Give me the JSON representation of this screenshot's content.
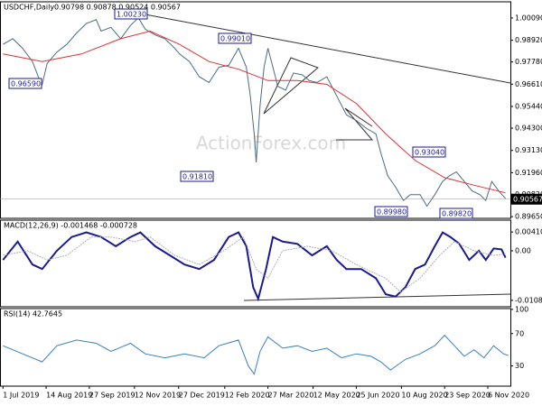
{
  "chart_data": [
    {
      "type": "line",
      "title": "USDCHF,Daily",
      "subtitle": "0.90798 0.90878 0.90524 0.90567",
      "watermark": "ActionForex.com",
      "xlim": [
        -3,
        517
      ],
      "ylim": [
        0.8956,
        1.0094
      ],
      "yticks": [
        {
          "value": 1.0009,
          "label": "1.00090"
        },
        {
          "value": 0.9892,
          "label": "0.98920"
        },
        {
          "value": 0.9778,
          "label": "0.97780"
        },
        {
          "value": 0.9661,
          "label": "0.96610"
        },
        {
          "value": 0.9544,
          "label": "0.95440"
        },
        {
          "value": 0.943,
          "label": "0.94300"
        },
        {
          "value": 0.9313,
          "label": "0.93130"
        },
        {
          "value": 0.9196,
          "label": "0.91960"
        },
        {
          "value": 0.9082,
          "label": "0.90820"
        },
        {
          "value": 0.8965,
          "label": "0.89650"
        }
      ],
      "last_price": {
        "value": 0.90567,
        "label": "0.90567"
      },
      "annotations": [
        "1.00230",
        "0.99010",
        "0.96590",
        "0.91810",
        "0.93040",
        "0.89980",
        "0.89820"
      ],
      "series": [
        {
          "name": "USDCHF",
          "color": "#4d6b80",
          "x": [
            0,
            10,
            20,
            30,
            36,
            40,
            45,
            55,
            65,
            75,
            85,
            95,
            100,
            110,
            120,
            130,
            138,
            145,
            155,
            165,
            175,
            180,
            190,
            200,
            210,
            220,
            230,
            240,
            248,
            252,
            256,
            258,
            262,
            266,
            270,
            275,
            280,
            288,
            296,
            305,
            312,
            320,
            330,
            340,
            350,
            360,
            370,
            380,
            385,
            392,
            400,
            408,
            415,
            425,
            432,
            440,
            448,
            455,
            462,
            470,
            478,
            486,
            492,
            498,
            505,
            512
          ],
          "values": [
            0.987,
            0.99,
            0.985,
            0.978,
            0.97,
            0.966,
            0.977,
            0.983,
            0.987,
            0.993,
            0.998,
            1.0,
            0.994,
            0.996,
            0.99,
            0.997,
            1.001,
            0.995,
            0.992,
            0.99,
            0.985,
            0.982,
            0.978,
            0.97,
            0.967,
            0.975,
            0.976,
            0.985,
            0.975,
            0.96,
            0.94,
            0.925,
            0.955,
            0.975,
            0.985,
            0.975,
            0.965,
            0.963,
            0.972,
            0.971,
            0.968,
            0.967,
            0.97,
            0.96,
            0.95,
            0.947,
            0.943,
            0.94,
            0.93,
            0.918,
            0.912,
            0.905,
            0.908,
            0.908,
            0.902,
            0.908,
            0.915,
            0.918,
            0.92,
            0.915,
            0.91,
            0.908,
            0.905,
            0.915,
            0.91,
            0.906
          ]
        },
        {
          "name": "MA",
          "color": "#e03030",
          "x": [
            0,
            40,
            80,
            120,
            150,
            180,
            210,
            240,
            270,
            300,
            330,
            360,
            390,
            420,
            450,
            480,
            512
          ],
          "values": [
            0.982,
            0.978,
            0.982,
            0.99,
            0.994,
            0.987,
            0.978,
            0.974,
            0.968,
            0.968,
            0.966,
            0.956,
            0.94,
            0.926,
            0.917,
            0.913,
            0.909
          ]
        }
      ]
    },
    {
      "type": "line",
      "title": "MACD(12,26,9) -0.001468 -0.000728",
      "xlim": [
        -3,
        517
      ],
      "ylim": [
        -0.01223,
        0.00669
      ],
      "yticks": [
        0.004101,
        {
          "value": 0,
          "label": "0.00"
        },
        -0.010833
      ],
      "series": [
        {
          "name": "MACD",
          "color": "#1a1a8c",
          "x": [
            0,
            15,
            30,
            40,
            55,
            70,
            85,
            100,
            115,
            130,
            140,
            155,
            170,
            185,
            200,
            215,
            230,
            240,
            248,
            255,
            260,
            268,
            275,
            285,
            300,
            315,
            330,
            340,
            350,
            365,
            380,
            390,
            400,
            410,
            420,
            430,
            440,
            448,
            456,
            465,
            475,
            485,
            492,
            500,
            508,
            512
          ],
          "values": [
            -0.002,
            0.002,
            -0.003,
            -0.004,
            0.0,
            0.003,
            0.004,
            0.003,
            0.001,
            0.003,
            0.004,
            0.001,
            -0.001,
            -0.003,
            -0.004,
            -0.002,
            0.003,
            0.004,
            0.001,
            -0.008,
            -0.0105,
            -0.004,
            0.003,
            0.002,
            0.0015,
            -0.001,
            0.001,
            -0.002,
            -0.004,
            -0.004,
            -0.006,
            -0.0095,
            -0.01,
            -0.008,
            -0.004,
            -0.003,
            0.001,
            0.004,
            0.003,
            0.0015,
            -0.002,
            0.0,
            -0.002,
            0.0005,
            0.0003,
            -0.0015
          ]
        },
        {
          "name": "Signal",
          "color": "#b0b0b0",
          "x": [
            0,
            25,
            45,
            65,
            90,
            110,
            135,
            150,
            175,
            200,
            225,
            245,
            258,
            270,
            285,
            310,
            335,
            360,
            390,
            405,
            425,
            445,
            460,
            480,
            500,
            512
          ],
          "values": [
            -0.001,
            0.0,
            -0.002,
            -0.001,
            0.003,
            0.003,
            0.002,
            0.003,
            -0.001,
            -0.003,
            0.0,
            0.003,
            -0.004,
            -0.006,
            0.0,
            0.001,
            0.0,
            -0.003,
            -0.006,
            -0.009,
            -0.006,
            -0.001,
            0.002,
            0.0,
            -0.001,
            -0.0007
          ]
        }
      ]
    },
    {
      "type": "line",
      "title": "RSI(14) 42.7645",
      "xlim": [
        -3,
        517
      ],
      "ylim": [
        5,
        101
      ],
      "yticks": [
        100,
        70,
        30
      ],
      "xticks": [
        {
          "value": 0,
          "label": "1 Jul 2019"
        },
        {
          "value": 44,
          "label": "14 Aug 2019"
        },
        {
          "value": 88,
          "label": "27 Sep 2019"
        },
        {
          "value": 134,
          "label": "12 Nov 2019"
        },
        {
          "value": 179,
          "label": "27 Dec 2019"
        },
        {
          "value": 226,
          "label": "12 Feb 2020"
        },
        {
          "value": 270,
          "label": "27 Mar 2020"
        },
        {
          "value": 316,
          "label": "12 May 2020"
        },
        {
          "value": 360,
          "label": "25 Jun 2020"
        },
        {
          "value": 406,
          "label": "10 Aug 2020"
        },
        {
          "value": 450,
          "label": "23 Sep 2020"
        },
        {
          "value": 494,
          "label": "6 Nov 2020"
        }
      ],
      "series": [
        {
          "name": "RSI",
          "color": "#3a7fc0",
          "x": [
            0,
            20,
            40,
            55,
            75,
            95,
            110,
            130,
            145,
            165,
            185,
            205,
            220,
            240,
            250,
            256,
            262,
            270,
            285,
            300,
            315,
            330,
            345,
            360,
            375,
            385,
            395,
            410,
            425,
            440,
            450,
            460,
            470,
            480,
            490,
            500,
            510,
            515
          ],
          "values": [
            55,
            45,
            35,
            55,
            62,
            58,
            48,
            58,
            45,
            40,
            45,
            40,
            55,
            62,
            30,
            20,
            48,
            66,
            52,
            55,
            48,
            52,
            40,
            45,
            42,
            35,
            25,
            38,
            45,
            55,
            68,
            55,
            42,
            50,
            40,
            55,
            45,
            43
          ]
        }
      ]
    }
  ]
}
